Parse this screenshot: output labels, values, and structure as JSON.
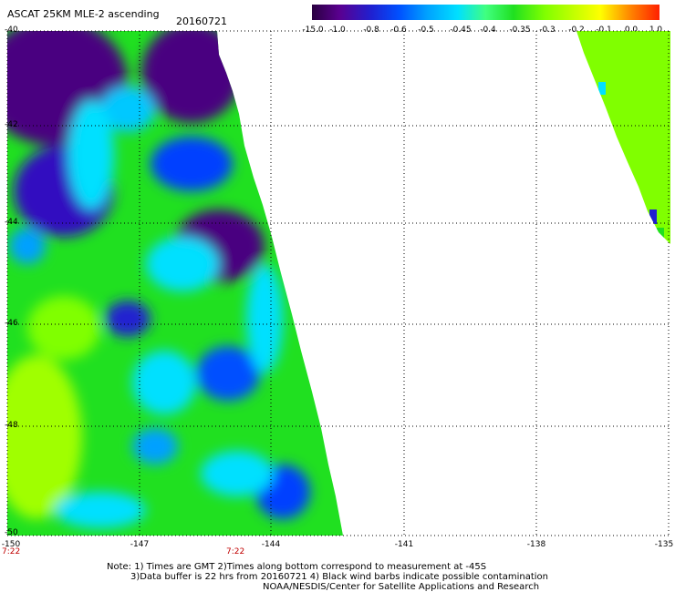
{
  "title": "ASCAT 25KM MLE-2 ascending",
  "date": "20160721",
  "colorbar": {
    "labels": [
      "-15.0",
      "-1.0",
      "-0.8",
      "-0.6",
      "-0.5",
      "-0.45",
      "-0.4",
      "-0.35",
      "-0.3",
      "-0.2",
      "-0.1",
      "0.0",
      "1.0"
    ],
    "colors": [
      "#2a0040",
      "#5a0090",
      "#2020d0",
      "#0050ff",
      "#00a0ff",
      "#00e0ff",
      "#40ff80",
      "#20e020",
      "#80ff00",
      "#c0ff00",
      "#ffff00",
      "#ff8000",
      "#ff2000"
    ]
  },
  "lat_labels": [
    "-40",
    "-42",
    "-44",
    "-46",
    "-48",
    "-50"
  ],
  "lon_labels": [
    "-150",
    "-147",
    "-144",
    "-141",
    "-138",
    "-135"
  ],
  "time_labels": [
    "7:22",
    "7:22"
  ],
  "notes": {
    "line1": "Note: 1) Times are GMT 2)Times along bottom correspond to measurement at -45S",
    "line2": "3)Data buffer is 22 hrs from 20160721 4) Black wind barbs indicate possible contamination",
    "line3": "NOAA/NESDIS/Center for Satellite Applications and Research"
  },
  "colors": {
    "grid": "#000000",
    "time_label": "#c00000"
  }
}
